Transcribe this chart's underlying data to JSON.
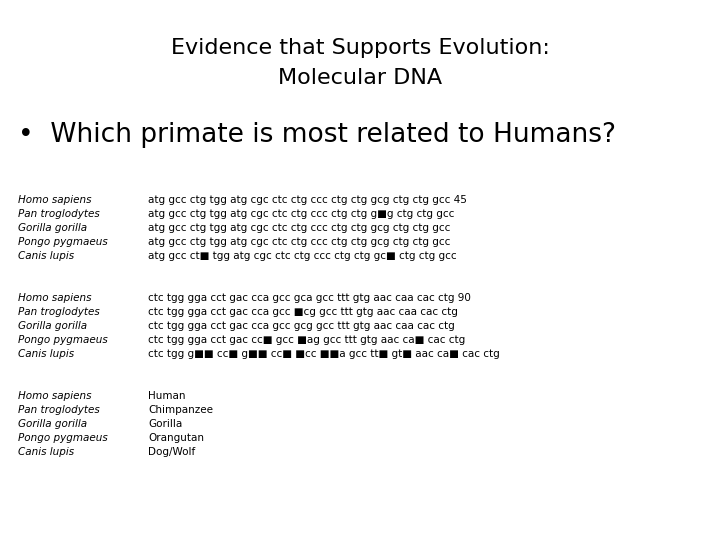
{
  "title_line1": "Evidence that Supports Evolution:",
  "title_line2": "Molecular DNA",
  "bullet": "•  Which primate is most related to Humans?",
  "background_color": "#ffffff",
  "text_color": "#000000",
  "title_fontsize": 16,
  "bullet_fontsize": 19,
  "mono_fontsize": 7.5,
  "block1": [
    [
      "Homo sapiens",
      "atg gcc ctg tgg atg cgc ctc ctg ccc ctg ctg gcg ctg ctg gcc 45"
    ],
    [
      "Pan troglodytes",
      "atg gcc ctg tgg atg cgc ctc ctg ccc ctg ctg g■g ctg ctg gcc"
    ],
    [
      "Gorilla gorilla",
      "atg gcc ctg tgg atg cgc ctc ctg ccc ctg ctg gcg ctg ctg gcc"
    ],
    [
      "Pongo pygmaeus",
      "atg gcc ctg tgg atg cgc ctc ctg ccc ctg ctg gcg ctg ctg gcc"
    ],
    [
      "Canis lupis",
      "atg gcc ct■ tgg atg cgc ctc ctg ccc ctg ctg gc■ ctg ctg gcc"
    ]
  ],
  "block2": [
    [
      "Homo sapiens",
      "ctc tgg gga cct gac cca gcc gca gcc ttt gtg aac caa cac ctg 90"
    ],
    [
      "Pan troglodytes",
      "ctc tgg gga cct gac cca gcc ■cg gcc ttt gtg aac caa cac ctg"
    ],
    [
      "Gorilla gorilla",
      "ctc tgg gga cct gac cca gcc gcg gcc ttt gtg aac caa cac ctg"
    ],
    [
      "Pongo pygmaeus",
      "ctc tgg gga cct gac cc■ gcc ■ag gcc ttt gtg aac ca■ cac ctg"
    ],
    [
      "Canis lupis",
      "ctc tgg g■■ cc■ g■■ cc■ ■cc ■■a gcc tt■ gt■ aac ca■ cac ctg"
    ]
  ],
  "block3": [
    [
      "Homo sapiens",
      "Human"
    ],
    [
      "Pan troglodytes",
      "Chimpanzee"
    ],
    [
      "Gorilla gorilla",
      "Gorilla"
    ],
    [
      "Pongo pygmaeus",
      "Orangutan"
    ],
    [
      "Canis lupis",
      "Dog/Wolf"
    ]
  ]
}
